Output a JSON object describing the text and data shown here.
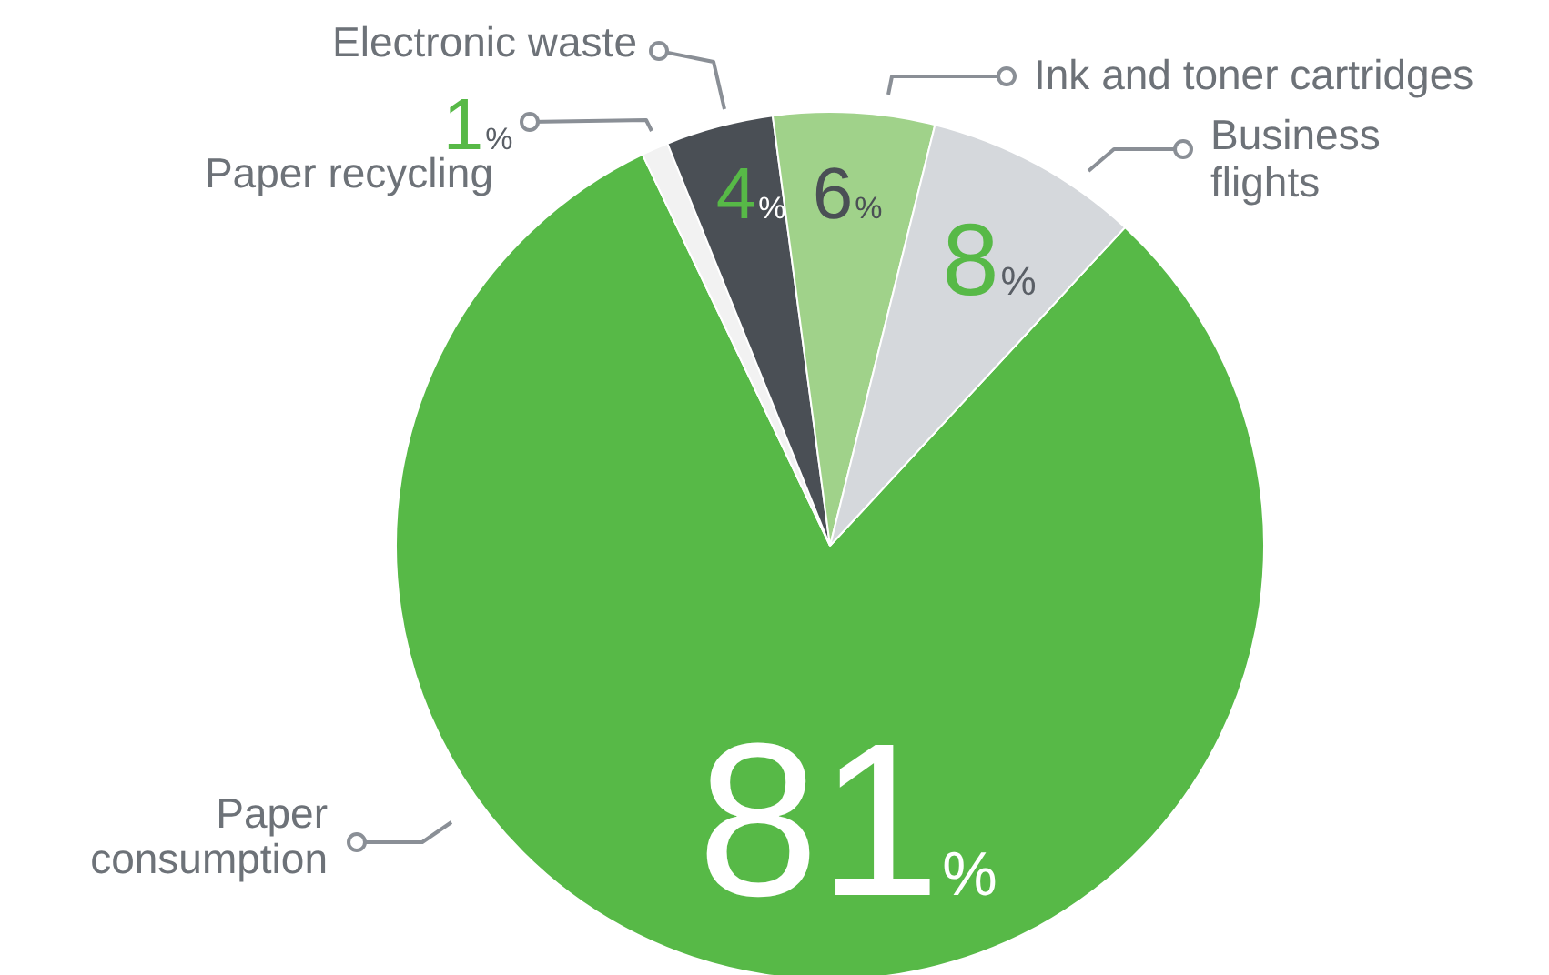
{
  "chart_data": {
    "type": "pie",
    "categories": [
      "Paper consumption",
      "Paper recycling",
      "Electronic waste",
      "Ink and toner cartridges",
      "Business flights"
    ],
    "values": [
      81,
      1,
      4,
      6,
      8
    ],
    "value_labels": [
      "81%",
      "1%",
      "4%",
      "6%",
      "8%"
    ],
    "colors": [
      "#57b947",
      "#f2f2f2",
      "#4a4f55",
      "#a0d28a",
      "#d5d8dc"
    ],
    "legend": false
  }
}
